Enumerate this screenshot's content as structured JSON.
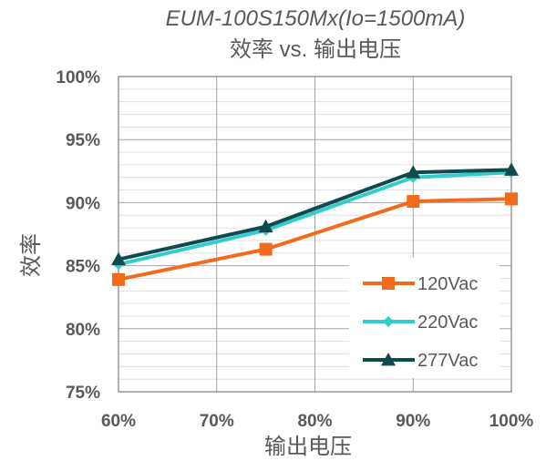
{
  "chart_data": {
    "type": "line",
    "title": "EUM-100S150Mx(Io=1500mA)",
    "subtitle": "效率 vs. 输出电压",
    "xlabel": "输出电压",
    "ylabel": "效率",
    "x": [
      0.6,
      0.75,
      0.9,
      1.0
    ],
    "x_tick_labels": [
      "60%",
      "70%",
      "80%",
      "90%",
      "100%"
    ],
    "x_ticks": [
      0.6,
      0.7,
      0.8,
      0.9,
      1.0
    ],
    "xlim": [
      0.6,
      1.0
    ],
    "y_tick_labels": [
      "75%",
      "80%",
      "85%",
      "90%",
      "95%",
      "100%"
    ],
    "y_ticks": [
      0.75,
      0.8,
      0.85,
      0.9,
      0.95,
      1.0
    ],
    "ylim": [
      0.75,
      1.0
    ],
    "grid": true,
    "legend": "bottom-right",
    "series": [
      {
        "name": "120Vac",
        "color": "#f26b1d",
        "marker": "square",
        "values": [
          0.839,
          0.863,
          0.901,
          0.903
        ]
      },
      {
        "name": "220Vac",
        "color": "#33cccc",
        "marker": "diamond",
        "values": [
          0.851,
          0.878,
          0.92,
          0.924
        ]
      },
      {
        "name": "277Vac",
        "color": "#0e4b4f",
        "marker": "triangle",
        "values": [
          0.855,
          0.881,
          0.924,
          0.926
        ]
      }
    ]
  }
}
